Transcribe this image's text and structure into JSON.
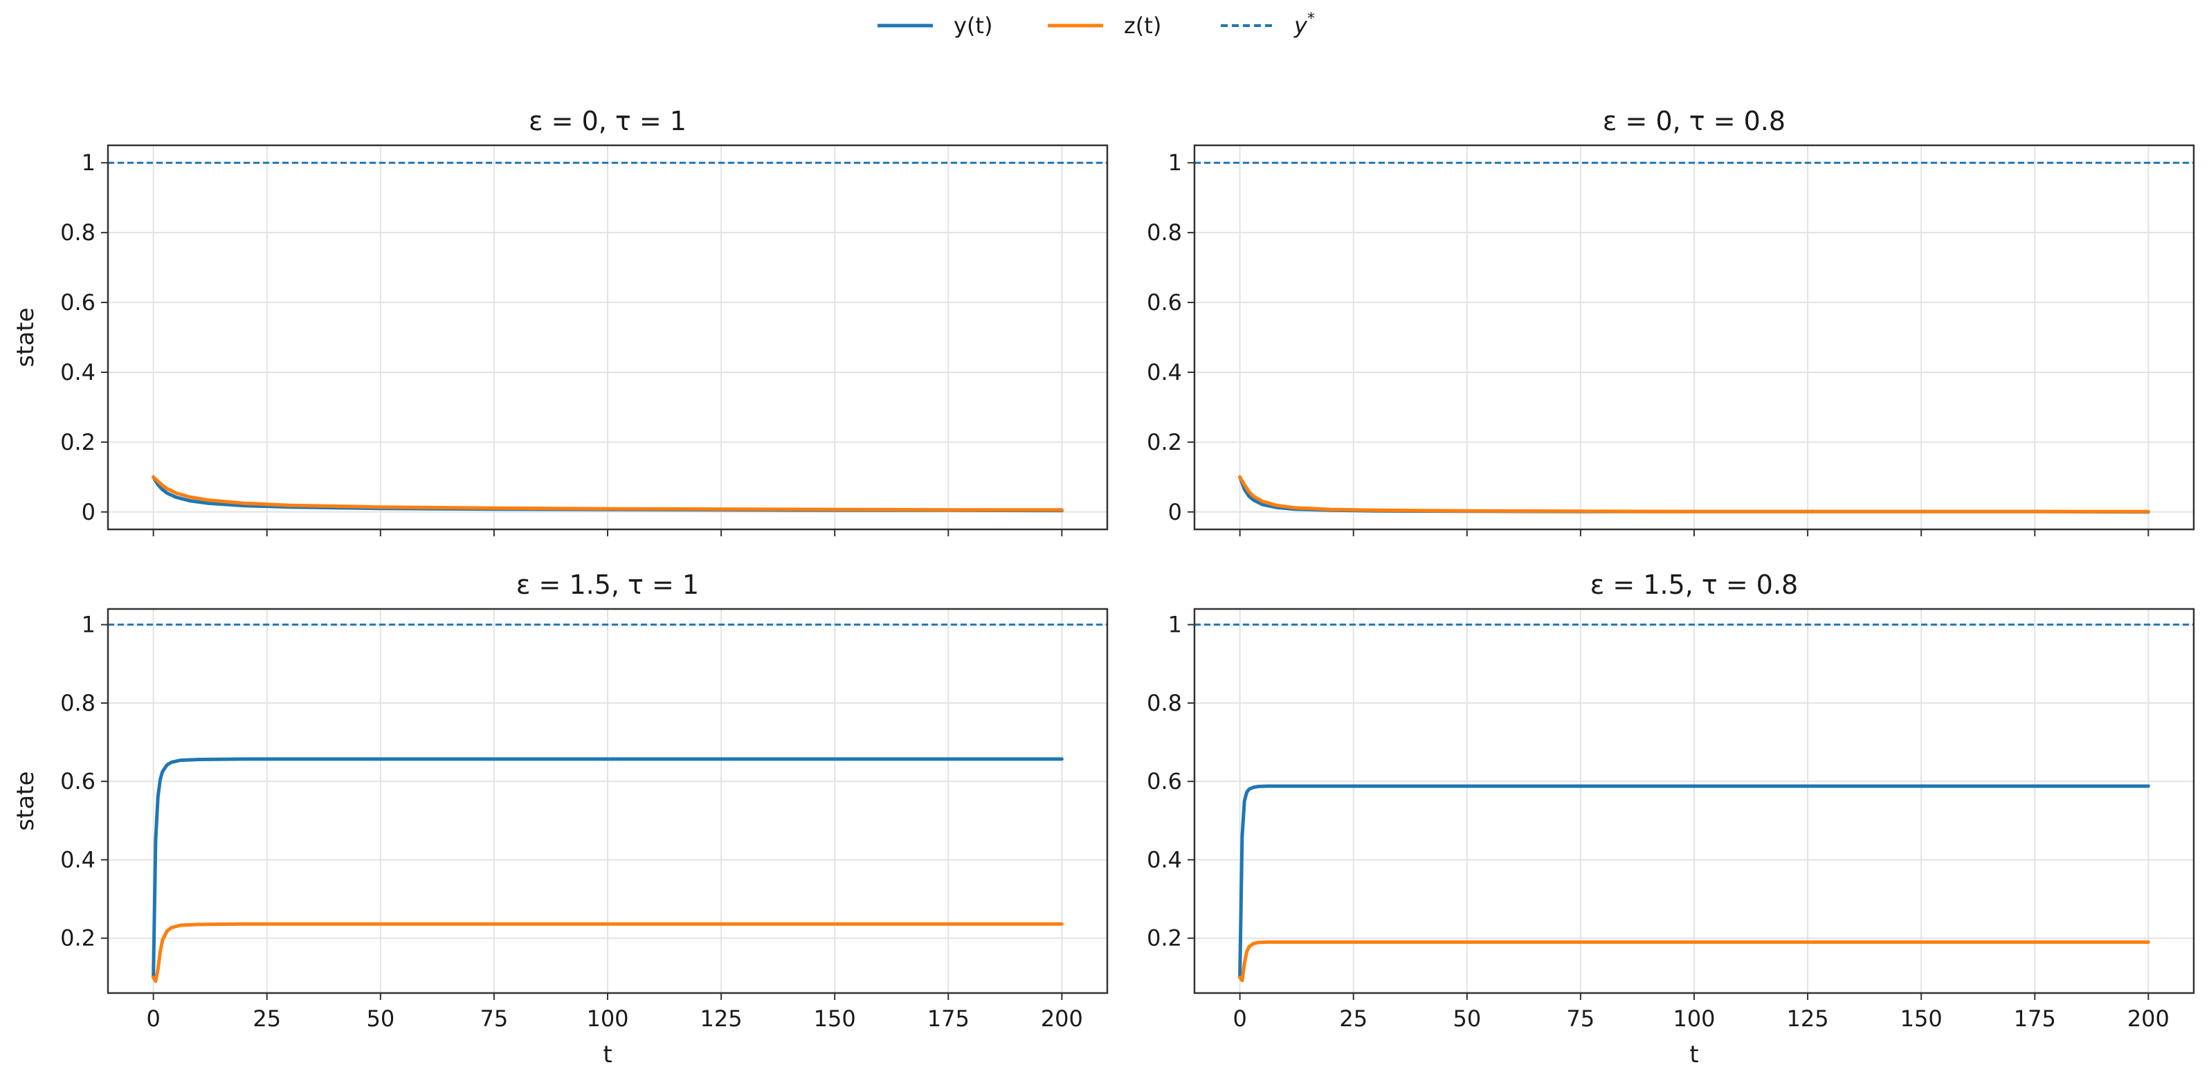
{
  "legend": {
    "placement": "top-center",
    "entries": [
      {
        "label": "y(t)",
        "color": "#1f77b4",
        "style": "solid"
      },
      {
        "label": "z(t)",
        "color": "#ff7f0e",
        "style": "solid"
      },
      {
        "label": "y*",
        "color": "#1f77b4",
        "style": "dashed"
      }
    ]
  },
  "chart_data": [
    {
      "type": "line",
      "title": "ε = 0, τ = 1",
      "xlabel": "",
      "ylabel": "state",
      "xlim": [
        -10,
        210
      ],
      "ylim": [
        -0.05,
        1.05
      ],
      "xticks": [
        0,
        25,
        50,
        75,
        100,
        125,
        150,
        175,
        200
      ],
      "yticks": [
        0.0,
        0.2,
        0.4,
        0.6,
        0.8,
        1.0
      ],
      "show_xtick_labels": false,
      "grid": true,
      "reference_line": {
        "name": "y*",
        "y": 1.0
      },
      "series": [
        {
          "name": "y(t)",
          "x": [
            0,
            1,
            2,
            3,
            5,
            8,
            12,
            20,
            30,
            50,
            75,
            100,
            125,
            150,
            175,
            200
          ],
          "values": [
            0.1,
            0.078,
            0.064,
            0.054,
            0.042,
            0.032,
            0.025,
            0.018,
            0.014,
            0.01,
            0.008,
            0.007,
            0.006,
            0.005,
            0.005,
            0.004
          ]
        },
        {
          "name": "z(t)",
          "x": [
            0,
            1,
            2,
            3,
            5,
            8,
            12,
            20,
            30,
            50,
            75,
            100,
            125,
            150,
            175,
            200
          ],
          "values": [
            0.1,
            0.088,
            0.076,
            0.067,
            0.054,
            0.043,
            0.034,
            0.025,
            0.019,
            0.014,
            0.011,
            0.009,
            0.008,
            0.007,
            0.006,
            0.006
          ]
        }
      ]
    },
    {
      "type": "line",
      "title": "ε = 0, τ = 0.8",
      "xlabel": "",
      "ylabel": "",
      "xlim": [
        -10,
        210
      ],
      "ylim": [
        -0.05,
        1.05
      ],
      "xticks": [
        0,
        25,
        50,
        75,
        100,
        125,
        150,
        175,
        200
      ],
      "yticks": [
        0.0,
        0.2,
        0.4,
        0.6,
        0.8,
        1.0
      ],
      "show_xtick_labels": false,
      "grid": true,
      "reference_line": {
        "name": "y*",
        "y": 1.0
      },
      "series": [
        {
          "name": "y(t)",
          "x": [
            0,
            1,
            2,
            3,
            5,
            8,
            12,
            20,
            30,
            50,
            75,
            100,
            125,
            150,
            175,
            200
          ],
          "values": [
            0.1,
            0.065,
            0.045,
            0.034,
            0.021,
            0.013,
            0.008,
            0.005,
            0.003,
            0.002,
            0.001,
            0.001,
            0.001,
            0.001,
            0.001,
            0.0
          ]
        },
        {
          "name": "z(t)",
          "x": [
            0,
            1,
            2,
            3,
            5,
            8,
            12,
            20,
            30,
            50,
            75,
            100,
            125,
            150,
            175,
            200
          ],
          "values": [
            0.1,
            0.078,
            0.058,
            0.045,
            0.03,
            0.019,
            0.012,
            0.007,
            0.005,
            0.003,
            0.002,
            0.001,
            0.001,
            0.001,
            0.001,
            0.001
          ]
        }
      ]
    },
    {
      "type": "line",
      "title": "ε = 1.5, τ = 1",
      "xlabel": "t",
      "ylabel": "state",
      "xlim": [
        -10,
        210
      ],
      "ylim": [
        0.06,
        1.04
      ],
      "xticks": [
        0,
        25,
        50,
        75,
        100,
        125,
        150,
        175,
        200
      ],
      "yticks": [
        0.2,
        0.4,
        0.6,
        0.8,
        1.0
      ],
      "show_xtick_labels": true,
      "grid": true,
      "reference_line": {
        "name": "y*",
        "y": 1.0
      },
      "series": [
        {
          "name": "y(t)",
          "x": [
            0,
            0.5,
            1,
            1.5,
            2,
            3,
            4,
            6,
            10,
            20,
            50,
            100,
            150,
            200
          ],
          "values": [
            0.1,
            0.45,
            0.56,
            0.605,
            0.625,
            0.642,
            0.649,
            0.654,
            0.656,
            0.657,
            0.657,
            0.657,
            0.657,
            0.657
          ]
        },
        {
          "name": "z(t)",
          "x": [
            0,
            0.5,
            1,
            1.5,
            2,
            3,
            4,
            6,
            10,
            20,
            50,
            100,
            150,
            200
          ],
          "values": [
            0.1,
            0.09,
            0.12,
            0.165,
            0.195,
            0.218,
            0.227,
            0.233,
            0.235,
            0.236,
            0.236,
            0.236,
            0.236,
            0.236
          ]
        }
      ]
    },
    {
      "type": "line",
      "title": "ε = 1.5, τ = 0.8",
      "xlabel": "t",
      "ylabel": "",
      "xlim": [
        -10,
        210
      ],
      "ylim": [
        0.06,
        1.04
      ],
      "xticks": [
        0,
        25,
        50,
        75,
        100,
        125,
        150,
        175,
        200
      ],
      "yticks": [
        0.2,
        0.4,
        0.6,
        0.8,
        1.0
      ],
      "show_xtick_labels": true,
      "grid": true,
      "reference_line": {
        "name": "y*",
        "y": 1.0
      },
      "series": [
        {
          "name": "y(t)",
          "x": [
            0,
            0.5,
            1,
            1.5,
            2,
            3,
            4,
            6,
            10,
            20,
            50,
            100,
            150,
            200
          ],
          "values": [
            0.1,
            0.46,
            0.55,
            0.572,
            0.58,
            0.585,
            0.587,
            0.588,
            0.588,
            0.588,
            0.588,
            0.588,
            0.588,
            0.588
          ]
        },
        {
          "name": "z(t)",
          "x": [
            0,
            0.5,
            1,
            1.5,
            2,
            3,
            4,
            6,
            10,
            20,
            50,
            100,
            150,
            200
          ],
          "values": [
            0.1,
            0.092,
            0.135,
            0.165,
            0.178,
            0.186,
            0.189,
            0.19,
            0.19,
            0.19,
            0.19,
            0.19,
            0.19,
            0.19
          ]
        }
      ]
    }
  ]
}
